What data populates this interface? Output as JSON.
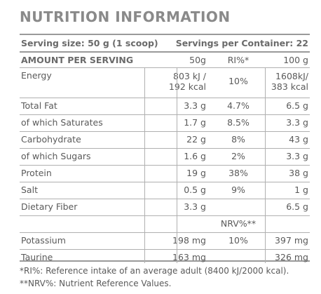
{
  "title": "NUTRITION INFORMATION",
  "serving": {
    "size_label": "Serving size: 50 g (1 scoop)",
    "per_container_label": "Servings per Container: 22"
  },
  "header": {
    "amount_label": "AMOUNT PER SERVING",
    "col_50g": "50g",
    "col_ri": "RI%*",
    "col_100g": "100 g"
  },
  "rows": [
    {
      "name": "Energy",
      "g50": "803 kJ /\n192 kcal",
      "ri": "10%",
      "g100": "1608kJ/\n383 kcal"
    },
    {
      "name": "Total Fat",
      "g50": "3.3 g",
      "ri": "4.7%",
      "g100": "6.5 g"
    },
    {
      "name": "of which Saturates",
      "g50": "1.7 g",
      "ri": "8.5%",
      "g100": "3.3 g"
    },
    {
      "name": "Carbohydrate",
      "g50": "22 g",
      "ri": "8%",
      "g100": "43 g"
    },
    {
      "name": "of which Sugars",
      "g50": "1.6 g",
      "ri": "2%",
      "g100": "3.3 g"
    },
    {
      "name": "Protein",
      "g50": "19 g",
      "ri": "38%",
      "g100": "38 g"
    },
    {
      "name": "Salt",
      "g50": "0.5 g",
      "ri": "9%",
      "g100": "1 g"
    },
    {
      "name": "Dietary Fiber",
      "g50": "3.3 g",
      "ri": "",
      "g100": "6.5 g"
    },
    {
      "name": "",
      "g50": "",
      "ri": "NRV%**",
      "g100": ""
    },
    {
      "name": "Potassium",
      "g50": "198 mg",
      "ri": "10%",
      "g100": "397 mg"
    },
    {
      "name": "Taurine",
      "g50": "163 mg",
      "ri": "",
      "g100": "326 mg"
    }
  ],
  "footnotes": [
    "*RI%: Reference intake of an average adult (8400 kJ/2000 kcal).",
    "**NRV%: Nutrient Reference Values."
  ]
}
